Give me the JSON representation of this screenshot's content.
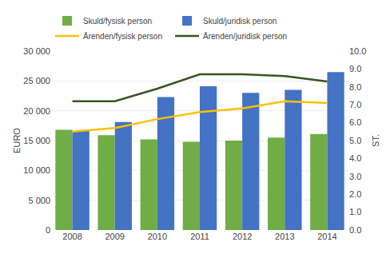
{
  "chart_data": {
    "type": "bar",
    "categories": [
      "2008",
      "2009",
      "2010",
      "2011",
      "2012",
      "2013",
      "2014"
    ],
    "series": [
      {
        "name": "Skuld/fysisk person",
        "type": "bar",
        "color": "#70AD47",
        "values": [
          16800,
          15900,
          15200,
          14800,
          15000,
          15500,
          16100
        ]
      },
      {
        "name": "Skuld/juridisk person",
        "type": "bar",
        "color": "#4472C4",
        "values": [
          16600,
          18100,
          22300,
          24100,
          23000,
          23500,
          26500
        ]
      },
      {
        "name": "Ärenden/fysisk person",
        "type": "line",
        "axis": "y2",
        "color": "#FFC000",
        "values": [
          5.5,
          5.7,
          6.2,
          6.6,
          6.8,
          7.2,
          7.1
        ]
      },
      {
        "name": "Ärenden/juridisk person",
        "type": "line",
        "axis": "y2",
        "color": "#375623",
        "values": [
          7.2,
          7.2,
          7.9,
          8.7,
          8.7,
          8.6,
          8.3
        ]
      }
    ],
    "ylabel": "EURO",
    "y2label": "ST.",
    "ylim": [
      0,
      30000
    ],
    "yticks": [
      0,
      {
        "value": 5000,
        "label": "5 000"
      },
      {
        "value": 10000,
        "label": "10 000"
      },
      {
        "value": 15000,
        "label": "15 000"
      },
      {
        "value": 20000,
        "label": "20 000"
      },
      {
        "value": 25000,
        "label": "25 000"
      },
      {
        "value": 30000,
        "label": "30 000"
      }
    ],
    "y2lim": [
      0.0,
      10.0
    ],
    "y2ticks": [
      {
        "value": 0.0,
        "label": "0.0"
      },
      {
        "value": 1.0,
        "label": "1.0"
      },
      {
        "value": 2.0,
        "label": "2.0"
      },
      {
        "value": 3.0,
        "label": "3.0"
      },
      {
        "value": 4.0,
        "label": "4.0"
      },
      {
        "value": 5.0,
        "label": "5.0"
      },
      {
        "value": 6.0,
        "label": "6.0"
      },
      {
        "value": 7.0,
        "label": "7.0"
      },
      {
        "value": 8.0,
        "label": "8.0"
      },
      {
        "value": 9.0,
        "label": "9.0"
      },
      {
        "value": 10.0,
        "label": "10.0"
      }
    ],
    "grid": true,
    "legend": "upper left"
  }
}
